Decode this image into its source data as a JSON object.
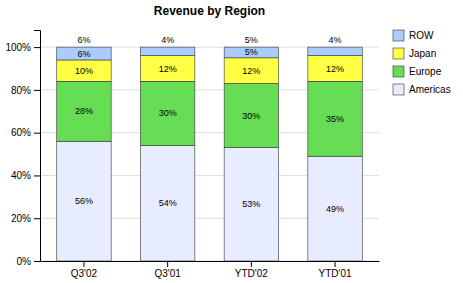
{
  "chart_data": {
    "type": "bar",
    "title": "Revenue by Region",
    "stacked": true,
    "data_labels": true,
    "grid": true,
    "legend": "right",
    "categories": [
      "Q3'02",
      "Q3'01",
      "YTD'02",
      "YTD'01"
    ],
    "series": [
      {
        "name": "Americas",
        "color": "#e8ecff",
        "values": [
          56,
          54,
          53,
          49
        ],
        "value_labels": [
          "56%",
          "54%",
          "53%",
          "49%"
        ]
      },
      {
        "name": "Europe",
        "color": "#66dd55",
        "values": [
          28,
          30,
          30,
          35
        ],
        "value_labels": [
          "28%",
          "30%",
          "30%",
          "35%"
        ]
      },
      {
        "name": "Japan",
        "color": "#ffff44",
        "values": [
          10,
          12,
          12,
          12
        ],
        "value_labels": [
          "10%",
          "12%",
          "12%",
          "12%"
        ]
      },
      {
        "name": "ROW",
        "color": "#aaccff",
        "values": [
          6,
          4,
          5,
          4
        ],
        "value_labels": [
          "6%",
          null,
          "5%",
          null
        ]
      }
    ],
    "ylim": [
      0,
      108
    ],
    "yticks": [
      {
        "value": 0,
        "label": "0%"
      },
      {
        "value": 20,
        "label": "20%"
      },
      {
        "value": 40,
        "label": "40%"
      },
      {
        "value": 60,
        "label": "60%"
      },
      {
        "value": 80,
        "label": "80%"
      },
      {
        "value": 100,
        "label": "100%"
      }
    ],
    "annotations": [
      {
        "x": "Q3'02",
        "text": "6%"
      },
      {
        "x": "Q3'01",
        "text": "4%"
      },
      {
        "x": "YTD'02",
        "text": "5%"
      },
      {
        "x": "YTD'01",
        "text": "4%"
      }
    ]
  }
}
